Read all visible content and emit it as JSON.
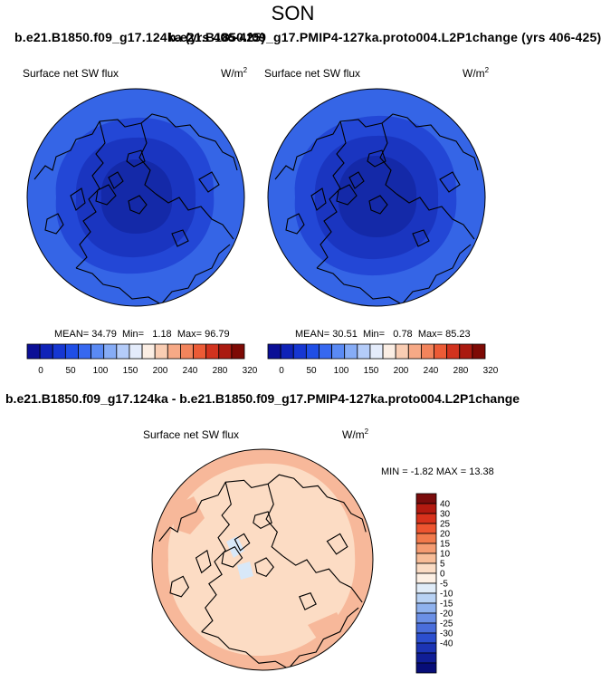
{
  "page_title": "SON",
  "panels": [
    {
      "case_title": "b.e21.B1850.f09_g17.124ka (yrs 406-425)",
      "variable": "Surface net SW flux",
      "units_base": "W/m",
      "units_exp": "2",
      "stats": {
        "mean_label": "MEAN=",
        "mean": "34.79",
        "min_label": "Min=",
        "min": "1.18",
        "max_label": "Max=",
        "max": "96.79"
      }
    },
    {
      "case_title": "b.e21.B1850.f09_g17.PMIP4-127ka.proto004.L2P1change (yrs 406-425)",
      "variable": "Surface net SW flux",
      "units_base": "W/m",
      "units_exp": "2",
      "stats": {
        "mean_label": "MEAN=",
        "mean": "30.51",
        "min_label": "Min=",
        "min": "0.78",
        "max_label": "Max=",
        "max": "85.23"
      }
    }
  ],
  "abs_colorbar": {
    "tick_labels": [
      "0",
      "50",
      "100",
      "150",
      "200",
      "240",
      "280",
      "320"
    ],
    "colors": [
      "#0b0f96",
      "#0f23b8",
      "#1637d2",
      "#1f4ee6",
      "#3768f0",
      "#5a8af4",
      "#86acf6",
      "#b4ccf9",
      "#e4ecfb",
      "#fbeee4",
      "#f9cdb3",
      "#f6a986",
      "#f2845c",
      "#ec5b36",
      "#d2331e",
      "#aa1a10",
      "#7e0a05"
    ]
  },
  "difference": {
    "title": "b.e21.B1850.f09_g17.124ka - b.e21.B1850.f09_g17.PMIP4-127ka.proto004.L2P1change",
    "variable": "Surface net SW flux",
    "units_base": "W/m",
    "units_exp": "2",
    "stats_label": "MIN = -1.82 MAX = 13.38",
    "colorbar": {
      "tick_labels": [
        "40",
        "30",
        "25",
        "20",
        "15",
        "10",
        "5",
        "0",
        "-5",
        "-10",
        "-15",
        "-20",
        "-25",
        "-30",
        "-40"
      ],
      "colors": [
        "#7a0c0c",
        "#b31a10",
        "#d8321c",
        "#ee5530",
        "#f27a4c",
        "#f59c72",
        "#f8bd98",
        "#fbdcc4",
        "#fdf0e4",
        "#e0ecf8",
        "#b8d2f4",
        "#8fb2ee",
        "#6b90e6",
        "#4a6edb",
        "#2c4fcf",
        "#1c34b4",
        "#101e96",
        "#070d78"
      ]
    }
  },
  "colors": {
    "ocean_blue_outer": "#3565e6",
    "ocean_blue_mid": "#2347d6",
    "arctic_blue": "#1a35c0",
    "diff_light": "#fcdcc4",
    "diff_mid": "#f7b89a",
    "diff_pale_blue": "#d8e8f8"
  }
}
